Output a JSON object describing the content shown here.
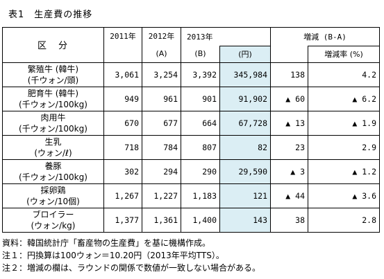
{
  "title": "表1　生産費の推移",
  "header": {
    "category": "区　分",
    "y2011": "2011年",
    "y2012": "2012年",
    "y2012_sub": "(A)",
    "y2013": "2013年",
    "y2013_sub": "(B)",
    "yen": "(円)",
    "change": "増減 (B-A)",
    "change_rate": "増減率 (%)"
  },
  "rows": [
    {
      "name": "繁殖牛 (韓牛)",
      "unit": "(千ウォン/頭)",
      "y2011": "3,061",
      "y2012": "3,254",
      "y2013": "3,392",
      "yen": "345,984",
      "diff": "138",
      "rate": "4.2"
    },
    {
      "name": "肥育牛 (韓牛)",
      "unit": "(千ウォン/100kg)",
      "y2011": "949",
      "y2012": "961",
      "y2013": "901",
      "yen": "91,902",
      "diff": "▲ 60",
      "rate": "▲ 6.2"
    },
    {
      "name": "肉用牛",
      "unit": "(千ウォン/100kg)",
      "y2011": "670",
      "y2012": "677",
      "y2013": "664",
      "yen": "67,728",
      "diff": "▲ 13",
      "rate": "▲ 1.9"
    },
    {
      "name": "生乳",
      "unit": "(ウォン/ℓ)",
      "y2011": "718",
      "y2012": "784",
      "y2013": "807",
      "yen": "82",
      "diff": "23",
      "rate": "2.9"
    },
    {
      "name": "養豚",
      "unit": "(千ウォン/100kg)",
      "y2011": "302",
      "y2012": "294",
      "y2013": "290",
      "yen": "29,590",
      "diff": "▲ 3",
      "rate": "▲ 1.2"
    },
    {
      "name": "採卵鶏",
      "unit": "(ウォン/10個)",
      "y2011": "1,267",
      "y2012": "1,227",
      "y2013": "1,183",
      "yen": "121",
      "diff": "▲ 44",
      "rate": "▲ 3.6"
    },
    {
      "name": "ブロイラー",
      "unit": "(ウォン/kg)",
      "y2011": "1,377",
      "y2012": "1,361",
      "y2013": "1,400",
      "yen": "143",
      "diff": "38",
      "rate": "2.8"
    }
  ],
  "notes": [
    "資料：韓国統計庁「畜産物の生産費」を基に機構作成。",
    "注１：円換算は100ウォン＝10.20円（2013年平均TTS）。",
    "注２：増減の欄は、ラウンドの関係で数値が一致しない場合がある。"
  ]
}
